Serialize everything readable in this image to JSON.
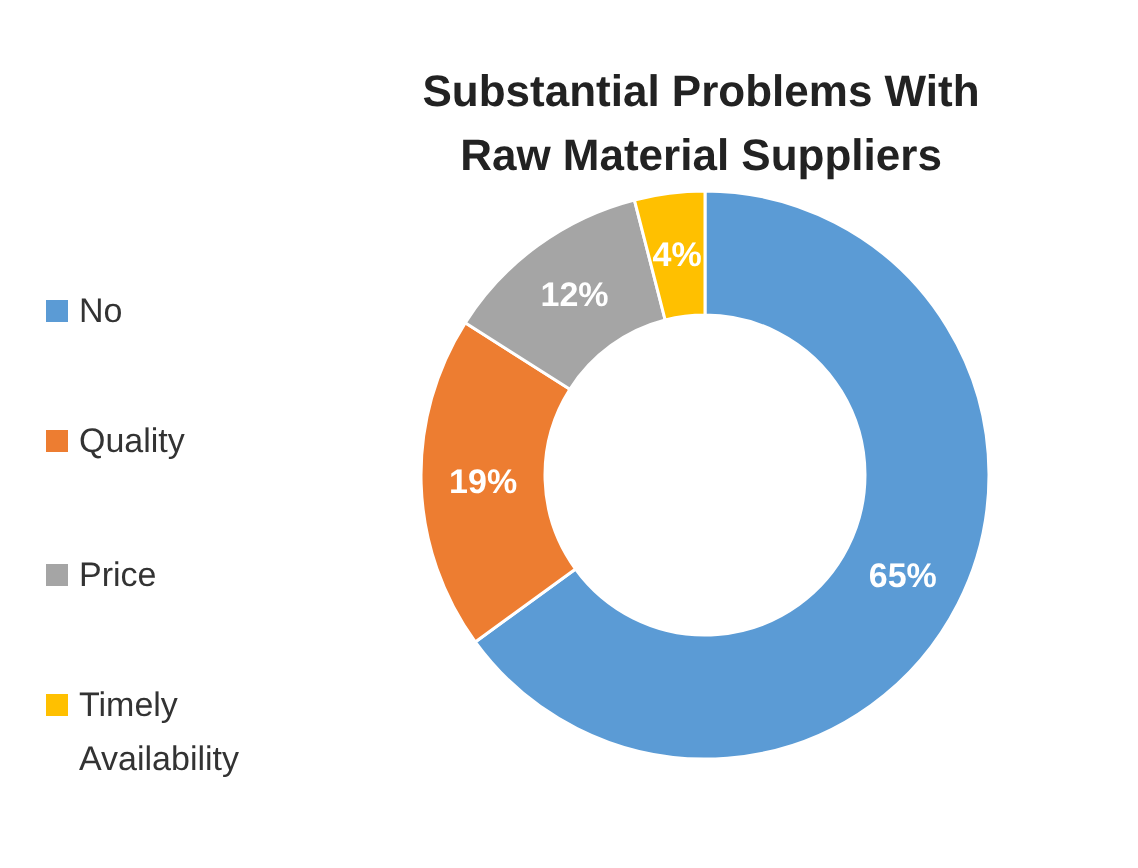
{
  "chart_data": {
    "type": "donut",
    "title": "Substantial Problems With Raw Material Suppliers",
    "categories": [
      "No",
      "Quality",
      "Price",
      "Timely Availability"
    ],
    "values": [
      65,
      19,
      12,
      4
    ],
    "colors": [
      "#5b9bd5",
      "#ed7d31",
      "#a5a5a5",
      "#ffc000"
    ],
    "value_labels": [
      "65%",
      "19%",
      "12%",
      "4%"
    ],
    "legend": "left"
  }
}
